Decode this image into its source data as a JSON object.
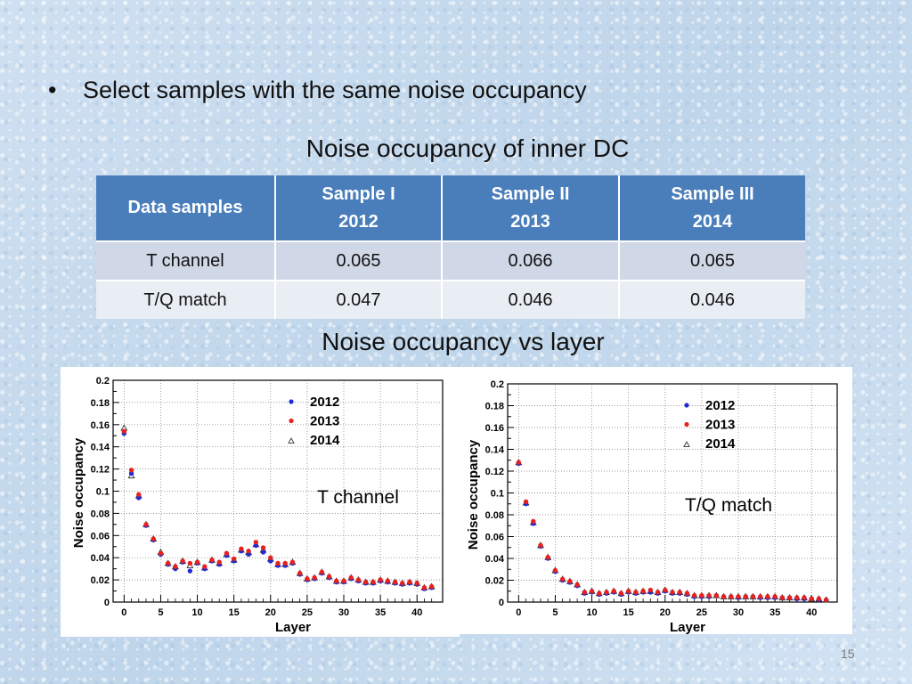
{
  "slide": {
    "bullet_symbol": "•",
    "bullet_text": "Select samples with the same noise occupancy",
    "table_title": "Noise occupancy of inner DC",
    "plots_title": "Noise occupancy vs layer",
    "page_number": "15"
  },
  "table": {
    "corner_header": "Data samples",
    "columns": [
      {
        "line1": "Sample I",
        "line2": "2012"
      },
      {
        "line1": "Sample II",
        "line2": "2013"
      },
      {
        "line1": "Sample III",
        "line2": "2014"
      }
    ],
    "rows": [
      {
        "label": "T channel",
        "values": [
          "0.065",
          "0.066",
          "0.065"
        ]
      },
      {
        "label": "T/Q match",
        "values": [
          "0.047",
          "0.046",
          "0.046"
        ]
      }
    ]
  },
  "chart_data": [
    {
      "type": "scatter",
      "annotation": "T channel",
      "xlabel": "Layer",
      "ylabel": "Noise occupancy",
      "xlim": [
        -1.5,
        43.5
      ],
      "ylim": [
        0,
        0.2
      ],
      "xticks": [
        0,
        5,
        10,
        15,
        20,
        25,
        30,
        35,
        40
      ],
      "yticks": [
        0,
        0.02,
        0.04,
        0.06,
        0.08,
        0.1,
        0.12,
        0.14,
        0.16,
        0.18,
        0.2
      ],
      "grid": true,
      "legend_position": "top-right",
      "series": [
        {
          "name": "2012",
          "color": "#1f2bd6",
          "marker": "dot",
          "x": [
            0,
            1,
            2,
            3,
            4,
            5,
            6,
            7,
            8,
            9,
            10,
            11,
            12,
            13,
            14,
            15,
            16,
            17,
            18,
            19,
            20,
            21,
            22,
            23,
            24,
            25,
            26,
            27,
            28,
            29,
            30,
            31,
            32,
            33,
            34,
            35,
            36,
            37,
            38,
            39,
            40,
            41,
            42
          ],
          "values": [
            0.152,
            0.116,
            0.094,
            0.069,
            0.056,
            0.043,
            0.034,
            0.03,
            0.036,
            0.028,
            0.035,
            0.03,
            0.037,
            0.034,
            0.042,
            0.037,
            0.046,
            0.043,
            0.051,
            0.045,
            0.037,
            0.033,
            0.033,
            0.035,
            0.025,
            0.02,
            0.021,
            0.026,
            0.022,
            0.018,
            0.018,
            0.021,
            0.019,
            0.017,
            0.017,
            0.019,
            0.018,
            0.017,
            0.016,
            0.017,
            0.016,
            0.012,
            0.013
          ]
        },
        {
          "name": "2013",
          "color": "#e8211c",
          "marker": "dot",
          "x": [
            0,
            1,
            2,
            3,
            4,
            5,
            6,
            7,
            8,
            9,
            10,
            11,
            12,
            13,
            14,
            15,
            16,
            17,
            18,
            19,
            20,
            21,
            22,
            23,
            24,
            25,
            26,
            27,
            28,
            29,
            30,
            31,
            32,
            33,
            34,
            35,
            36,
            37,
            38,
            39,
            40,
            41,
            42
          ],
          "values": [
            0.154,
            0.119,
            0.097,
            0.07,
            0.057,
            0.044,
            0.035,
            0.032,
            0.037,
            0.035,
            0.036,
            0.032,
            0.038,
            0.036,
            0.044,
            0.039,
            0.048,
            0.046,
            0.054,
            0.049,
            0.04,
            0.035,
            0.035,
            0.036,
            0.026,
            0.021,
            0.022,
            0.027,
            0.023,
            0.019,
            0.019,
            0.022,
            0.02,
            0.018,
            0.018,
            0.02,
            0.019,
            0.018,
            0.017,
            0.018,
            0.017,
            0.013,
            0.014
          ]
        },
        {
          "name": "2014",
          "color": "#333333",
          "marker": "triangle",
          "x": [
            0,
            1,
            2,
            3,
            4,
            5,
            6,
            7,
            8,
            9,
            10,
            11,
            12,
            13,
            14,
            15,
            16,
            17,
            18,
            19,
            20,
            21,
            22,
            23,
            24,
            25,
            26,
            27,
            28,
            29,
            30,
            31,
            32,
            33,
            34,
            35,
            36,
            37,
            38,
            39,
            40,
            41,
            42
          ],
          "values": [
            0.157,
            0.114,
            0.096,
            0.07,
            0.057,
            0.045,
            0.035,
            0.032,
            0.037,
            0.033,
            0.036,
            0.031,
            0.038,
            0.035,
            0.043,
            0.038,
            0.047,
            0.045,
            0.052,
            0.047,
            0.039,
            0.034,
            0.034,
            0.036,
            0.026,
            0.021,
            0.022,
            0.027,
            0.023,
            0.019,
            0.019,
            0.022,
            0.02,
            0.018,
            0.018,
            0.02,
            0.019,
            0.018,
            0.017,
            0.018,
            0.017,
            0.013,
            0.014
          ]
        }
      ]
    },
    {
      "type": "scatter",
      "annotation": "T/Q match",
      "xlabel": "Layer",
      "ylabel": "Noise occupancy",
      "xlim": [
        -1.5,
        43.5
      ],
      "ylim": [
        0,
        0.2
      ],
      "xticks": [
        0,
        5,
        10,
        15,
        20,
        25,
        30,
        35,
        40
      ],
      "yticks": [
        0,
        0.02,
        0.04,
        0.06,
        0.08,
        0.1,
        0.12,
        0.14,
        0.16,
        0.18,
        0.2
      ],
      "grid": true,
      "legend_position": "top-right",
      "series": [
        {
          "name": "2012",
          "color": "#1f2bd6",
          "marker": "dot",
          "x": [
            0,
            1,
            2,
            3,
            4,
            5,
            6,
            7,
            8,
            9,
            10,
            11,
            12,
            13,
            14,
            15,
            16,
            17,
            18,
            19,
            20,
            21,
            22,
            23,
            24,
            25,
            26,
            27,
            28,
            29,
            30,
            31,
            32,
            33,
            34,
            35,
            36,
            37,
            38,
            39,
            40,
            41,
            42
          ],
          "values": [
            0.127,
            0.09,
            0.072,
            0.051,
            0.04,
            0.028,
            0.02,
            0.018,
            0.015,
            0.008,
            0.009,
            0.007,
            0.008,
            0.009,
            0.007,
            0.009,
            0.008,
            0.009,
            0.009,
            0.008,
            0.01,
            0.008,
            0.008,
            0.007,
            0.005,
            0.005,
            0.005,
            0.006,
            0.005,
            0.005,
            0.004,
            0.005,
            0.005,
            0.004,
            0.004,
            0.004,
            0.004,
            0.004,
            0.003,
            0.003,
            0.003,
            0.002,
            0.002
          ]
        },
        {
          "name": "2013",
          "color": "#e8211c",
          "marker": "dot",
          "x": [
            0,
            1,
            2,
            3,
            4,
            5,
            6,
            7,
            8,
            9,
            10,
            11,
            12,
            13,
            14,
            15,
            16,
            17,
            18,
            19,
            20,
            21,
            22,
            23,
            24,
            25,
            26,
            27,
            28,
            29,
            30,
            31,
            32,
            33,
            34,
            35,
            36,
            37,
            38,
            39,
            40,
            41,
            42
          ],
          "values": [
            0.128,
            0.092,
            0.074,
            0.052,
            0.041,
            0.029,
            0.021,
            0.019,
            0.016,
            0.009,
            0.01,
            0.008,
            0.009,
            0.01,
            0.008,
            0.01,
            0.009,
            0.01,
            0.011,
            0.009,
            0.011,
            0.009,
            0.009,
            0.008,
            0.006,
            0.006,
            0.006,
            0.006,
            0.005,
            0.005,
            0.005,
            0.005,
            0.005,
            0.005,
            0.005,
            0.005,
            0.004,
            0.004,
            0.004,
            0.004,
            0.003,
            0.003,
            0.002
          ]
        },
        {
          "name": "2014",
          "color": "#333333",
          "marker": "triangle",
          "x": [
            0,
            1,
            2,
            3,
            4,
            5,
            6,
            7,
            8,
            9,
            10,
            11,
            12,
            13,
            14,
            15,
            16,
            17,
            18,
            19,
            20,
            21,
            22,
            23,
            24,
            25,
            26,
            27,
            28,
            29,
            30,
            31,
            32,
            33,
            34,
            35,
            36,
            37,
            38,
            39,
            40,
            41,
            42
          ],
          "values": [
            0.128,
            0.091,
            0.073,
            0.052,
            0.041,
            0.029,
            0.021,
            0.019,
            0.016,
            0.009,
            0.01,
            0.008,
            0.009,
            0.01,
            0.008,
            0.01,
            0.009,
            0.01,
            0.01,
            0.009,
            0.011,
            0.009,
            0.009,
            0.008,
            0.006,
            0.006,
            0.006,
            0.006,
            0.005,
            0.005,
            0.005,
            0.005,
            0.005,
            0.005,
            0.005,
            0.005,
            0.004,
            0.004,
            0.004,
            0.004,
            0.003,
            0.003,
            0.002
          ]
        }
      ]
    }
  ]
}
